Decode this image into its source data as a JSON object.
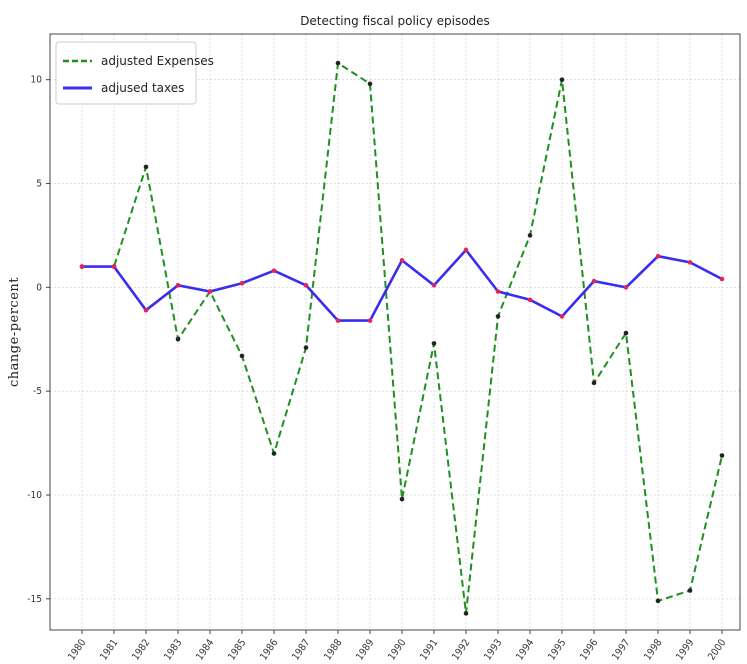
{
  "chart_data": {
    "type": "line",
    "title": "Detecting fiscal policy episodes",
    "xlabel": "",
    "ylabel": "change-percent",
    "categories": [
      "1980",
      "1981",
      "1982",
      "1983",
      "1984",
      "1985",
      "1986",
      "1987",
      "1988",
      "1989",
      "1990",
      "1991",
      "1992",
      "1993",
      "1994",
      "1995",
      "1996",
      "1997",
      "1998",
      "1999",
      "2000"
    ],
    "ylim": [
      -16.5,
      12.2
    ],
    "yticks": [
      10,
      5,
      0,
      -5,
      -10,
      -15
    ],
    "grid": true,
    "legend_position": "top-left",
    "series": [
      {
        "name": "adjusted Expenses",
        "style": "dashed",
        "color": "#1f8f1f",
        "values": [
          1.0,
          1.0,
          5.8,
          -2.5,
          -0.2,
          -3.3,
          -8.0,
          -2.9,
          10.8,
          9.8,
          -10.2,
          -2.7,
          -15.7,
          -1.4,
          2.5,
          10.0,
          -4.6,
          -2.2,
          -15.1,
          -14.6,
          -8.1
        ]
      },
      {
        "name": "adjused taxes",
        "style": "solid",
        "color": "#3a2cf0",
        "values": [
          1.0,
          1.0,
          -1.1,
          0.1,
          -0.2,
          0.2,
          0.8,
          0.1,
          -1.6,
          -1.6,
          1.3,
          0.1,
          1.8,
          -0.2,
          -0.6,
          -1.4,
          0.3,
          0.0,
          1.5,
          1.2,
          0.4
        ]
      }
    ]
  }
}
